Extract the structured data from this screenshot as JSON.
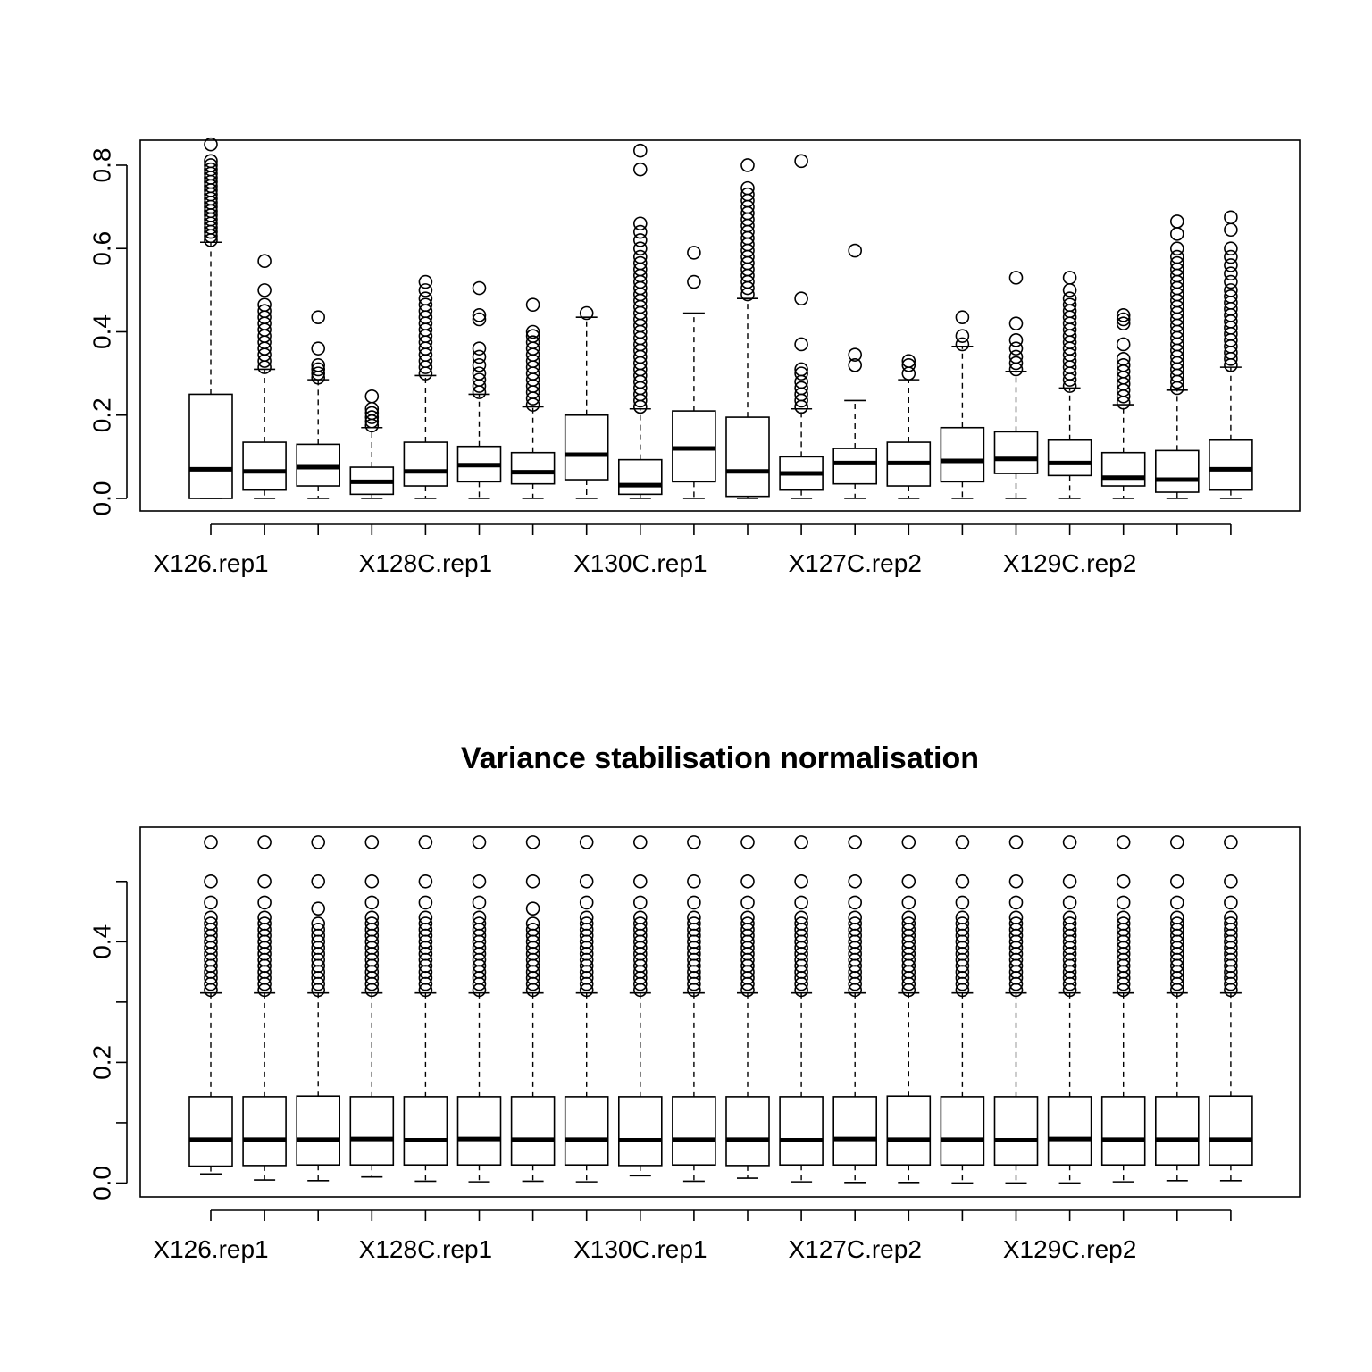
{
  "chart_data": [
    {
      "type": "box",
      "title": "",
      "xlabel": "",
      "ylabel": "",
      "ylim": [
        -0.03,
        0.86
      ],
      "yticks": [
        0.0,
        0.2,
        0.4,
        0.6,
        0.8
      ],
      "ytick_labels": [
        "0.0",
        "0.2",
        "0.4",
        "0.6",
        "0.8"
      ],
      "tick_labels": [
        "X126.rep1",
        "X128C.rep1",
        "X130C.rep1",
        "X127C.rep2",
        "X129C.rep2"
      ],
      "grid": false,
      "boxes": [
        {
          "whisker_low": 0.0,
          "q1": 0.0,
          "median": 0.07,
          "q3": 0.25,
          "whisker_high": 0.615,
          "outliers": [
            0.62,
            0.63,
            0.64,
            0.65,
            0.66,
            0.67,
            0.68,
            0.69,
            0.7,
            0.71,
            0.72,
            0.73,
            0.74,
            0.75,
            0.76,
            0.77,
            0.78,
            0.79,
            0.8,
            0.81,
            0.85
          ]
        },
        {
          "whisker_low": 0.0,
          "q1": 0.02,
          "median": 0.065,
          "q3": 0.135,
          "whisker_high": 0.31,
          "outliers": [
            0.315,
            0.33,
            0.345,
            0.36,
            0.375,
            0.39,
            0.405,
            0.42,
            0.435,
            0.45,
            0.465,
            0.5,
            0.57
          ]
        },
        {
          "whisker_low": 0.0,
          "q1": 0.03,
          "median": 0.075,
          "q3": 0.13,
          "whisker_high": 0.285,
          "outliers": [
            0.29,
            0.3,
            0.31,
            0.32,
            0.36,
            0.435
          ]
        },
        {
          "whisker_low": 0.0,
          "q1": 0.01,
          "median": 0.04,
          "q3": 0.075,
          "whisker_high": 0.17,
          "outliers": [
            0.175,
            0.185,
            0.195,
            0.205,
            0.215,
            0.245
          ]
        },
        {
          "whisker_low": 0.0,
          "q1": 0.03,
          "median": 0.065,
          "q3": 0.135,
          "whisker_high": 0.295,
          "outliers": [
            0.3,
            0.315,
            0.33,
            0.345,
            0.36,
            0.375,
            0.39,
            0.405,
            0.42,
            0.435,
            0.45,
            0.465,
            0.48,
            0.5,
            0.52
          ]
        },
        {
          "whisker_low": 0.0,
          "q1": 0.04,
          "median": 0.08,
          "q3": 0.125,
          "whisker_high": 0.25,
          "outliers": [
            0.255,
            0.27,
            0.285,
            0.3,
            0.32,
            0.34,
            0.36,
            0.43,
            0.44,
            0.505
          ]
        },
        {
          "whisker_low": 0.0,
          "q1": 0.035,
          "median": 0.063,
          "q3": 0.11,
          "whisker_high": 0.22,
          "outliers": [
            0.225,
            0.24,
            0.255,
            0.27,
            0.285,
            0.3,
            0.315,
            0.33,
            0.345,
            0.36,
            0.375,
            0.39,
            0.4,
            0.465
          ]
        },
        {
          "whisker_low": 0.0,
          "q1": 0.045,
          "median": 0.105,
          "q3": 0.2,
          "whisker_high": 0.435,
          "outliers": [
            0.445
          ]
        },
        {
          "whisker_low": 0.0,
          "q1": 0.01,
          "median": 0.032,
          "q3": 0.093,
          "whisker_high": 0.215,
          "outliers": [
            0.22,
            0.235,
            0.25,
            0.265,
            0.28,
            0.295,
            0.31,
            0.325,
            0.34,
            0.355,
            0.37,
            0.385,
            0.4,
            0.415,
            0.43,
            0.445,
            0.46,
            0.475,
            0.49,
            0.505,
            0.52,
            0.535,
            0.55,
            0.565,
            0.58,
            0.6,
            0.62,
            0.64,
            0.66,
            0.79,
            0.835
          ]
        },
        {
          "whisker_low": 0.0,
          "q1": 0.04,
          "median": 0.12,
          "q3": 0.21,
          "whisker_high": 0.445,
          "outliers": [
            0.52,
            0.59
          ]
        },
        {
          "whisker_low": 0.0,
          "q1": 0.005,
          "median": 0.065,
          "q3": 0.195,
          "whisker_high": 0.48,
          "outliers": [
            0.49,
            0.505,
            0.52,
            0.535,
            0.55,
            0.565,
            0.58,
            0.595,
            0.61,
            0.625,
            0.64,
            0.655,
            0.67,
            0.685,
            0.7,
            0.715,
            0.73,
            0.745,
            0.8
          ]
        },
        {
          "whisker_low": 0.0,
          "q1": 0.02,
          "median": 0.06,
          "q3": 0.1,
          "whisker_high": 0.215,
          "outliers": [
            0.22,
            0.235,
            0.25,
            0.265,
            0.28,
            0.3,
            0.31,
            0.37,
            0.48,
            0.81
          ]
        },
        {
          "whisker_low": 0.0,
          "q1": 0.035,
          "median": 0.085,
          "q3": 0.12,
          "whisker_high": 0.235,
          "outliers": [
            0.32,
            0.345,
            0.595
          ]
        },
        {
          "whisker_low": 0.0,
          "q1": 0.03,
          "median": 0.085,
          "q3": 0.135,
          "whisker_high": 0.285,
          "outliers": [
            0.3,
            0.32,
            0.33
          ]
        },
        {
          "whisker_low": 0.0,
          "q1": 0.04,
          "median": 0.09,
          "q3": 0.17,
          "whisker_high": 0.365,
          "outliers": [
            0.37,
            0.39,
            0.435
          ]
        },
        {
          "whisker_low": 0.0,
          "q1": 0.06,
          "median": 0.095,
          "q3": 0.16,
          "whisker_high": 0.305,
          "outliers": [
            0.31,
            0.325,
            0.34,
            0.36,
            0.38,
            0.42,
            0.53
          ]
        },
        {
          "whisker_low": 0.0,
          "q1": 0.055,
          "median": 0.085,
          "q3": 0.14,
          "whisker_high": 0.265,
          "outliers": [
            0.27,
            0.285,
            0.3,
            0.315,
            0.33,
            0.345,
            0.36,
            0.375,
            0.39,
            0.405,
            0.42,
            0.435,
            0.45,
            0.465,
            0.48,
            0.5,
            0.53
          ]
        },
        {
          "whisker_low": 0.0,
          "q1": 0.03,
          "median": 0.05,
          "q3": 0.11,
          "whisker_high": 0.225,
          "outliers": [
            0.23,
            0.245,
            0.26,
            0.275,
            0.29,
            0.305,
            0.32,
            0.335,
            0.37,
            0.42,
            0.43,
            0.44
          ]
        },
        {
          "whisker_low": 0.0,
          "q1": 0.015,
          "median": 0.045,
          "q3": 0.115,
          "whisker_high": 0.26,
          "outliers": [
            0.265,
            0.28,
            0.295,
            0.31,
            0.325,
            0.34,
            0.355,
            0.37,
            0.385,
            0.4,
            0.415,
            0.43,
            0.445,
            0.46,
            0.475,
            0.49,
            0.505,
            0.52,
            0.535,
            0.55,
            0.565,
            0.58,
            0.6,
            0.635,
            0.665
          ]
        },
        {
          "whisker_low": 0.0,
          "q1": 0.02,
          "median": 0.07,
          "q3": 0.14,
          "whisker_high": 0.315,
          "outliers": [
            0.32,
            0.335,
            0.35,
            0.365,
            0.38,
            0.395,
            0.41,
            0.425,
            0.44,
            0.455,
            0.47,
            0.485,
            0.5,
            0.52,
            0.54,
            0.56,
            0.58,
            0.6,
            0.645,
            0.675
          ]
        }
      ]
    },
    {
      "type": "box",
      "title": "Variance stabilisation normalisation",
      "xlabel": "",
      "ylabel": "",
      "ylim": [
        -0.023,
        0.59
      ],
      "yticks": [
        0.0,
        0.1,
        0.2,
        0.3,
        0.4,
        0.5
      ],
      "ytick_labels": [
        "0.0",
        "",
        "0.2",
        "",
        "0.4",
        ""
      ],
      "tick_labels": [
        "X126.rep1",
        "X128C.rep1",
        "X130C.rep1",
        "X127C.rep2",
        "X129C.rep2"
      ],
      "grid": false,
      "boxes": [
        {
          "whisker_low": 0.015,
          "q1": 0.028,
          "median": 0.072,
          "q3": 0.143,
          "whisker_high": 0.315,
          "outliers": [
            0.32,
            0.33,
            0.34,
            0.35,
            0.36,
            0.37,
            0.38,
            0.39,
            0.4,
            0.41,
            0.42,
            0.43,
            0.44,
            0.465,
            0.5,
            0.565
          ]
        },
        {
          "whisker_low": 0.005,
          "q1": 0.029,
          "median": 0.072,
          "q3": 0.143,
          "whisker_high": 0.315,
          "outliers": [
            0.32,
            0.33,
            0.34,
            0.35,
            0.36,
            0.37,
            0.38,
            0.39,
            0.4,
            0.41,
            0.42,
            0.43,
            0.44,
            0.465,
            0.5,
            0.565
          ]
        },
        {
          "whisker_low": 0.004,
          "q1": 0.03,
          "median": 0.072,
          "q3": 0.144,
          "whisker_high": 0.315,
          "outliers": [
            0.32,
            0.33,
            0.34,
            0.35,
            0.36,
            0.37,
            0.38,
            0.39,
            0.4,
            0.41,
            0.42,
            0.43,
            0.455,
            0.5,
            0.565
          ]
        },
        {
          "whisker_low": 0.01,
          "q1": 0.03,
          "median": 0.073,
          "q3": 0.143,
          "whisker_high": 0.315,
          "outliers": [
            0.32,
            0.33,
            0.34,
            0.35,
            0.36,
            0.37,
            0.38,
            0.39,
            0.4,
            0.41,
            0.42,
            0.43,
            0.44,
            0.465,
            0.5,
            0.565
          ]
        },
        {
          "whisker_low": 0.003,
          "q1": 0.03,
          "median": 0.071,
          "q3": 0.143,
          "whisker_high": 0.315,
          "outliers": [
            0.32,
            0.33,
            0.34,
            0.35,
            0.36,
            0.37,
            0.38,
            0.39,
            0.4,
            0.41,
            0.42,
            0.43,
            0.44,
            0.465,
            0.5,
            0.565
          ]
        },
        {
          "whisker_low": 0.002,
          "q1": 0.03,
          "median": 0.073,
          "q3": 0.143,
          "whisker_high": 0.315,
          "outliers": [
            0.32,
            0.33,
            0.34,
            0.35,
            0.36,
            0.37,
            0.38,
            0.39,
            0.4,
            0.41,
            0.42,
            0.43,
            0.44,
            0.465,
            0.5,
            0.565
          ]
        },
        {
          "whisker_low": 0.003,
          "q1": 0.03,
          "median": 0.072,
          "q3": 0.143,
          "whisker_high": 0.315,
          "outliers": [
            0.32,
            0.33,
            0.34,
            0.35,
            0.36,
            0.37,
            0.38,
            0.39,
            0.4,
            0.41,
            0.42,
            0.43,
            0.455,
            0.5,
            0.565
          ]
        },
        {
          "whisker_low": 0.002,
          "q1": 0.03,
          "median": 0.072,
          "q3": 0.143,
          "whisker_high": 0.315,
          "outliers": [
            0.32,
            0.33,
            0.34,
            0.35,
            0.36,
            0.37,
            0.38,
            0.39,
            0.4,
            0.41,
            0.42,
            0.43,
            0.44,
            0.465,
            0.5,
            0.565
          ]
        },
        {
          "whisker_low": 0.012,
          "q1": 0.029,
          "median": 0.071,
          "q3": 0.143,
          "whisker_high": 0.315,
          "outliers": [
            0.32,
            0.33,
            0.34,
            0.35,
            0.36,
            0.37,
            0.38,
            0.39,
            0.4,
            0.41,
            0.42,
            0.43,
            0.44,
            0.465,
            0.5,
            0.565
          ]
        },
        {
          "whisker_low": 0.003,
          "q1": 0.03,
          "median": 0.072,
          "q3": 0.143,
          "whisker_high": 0.315,
          "outliers": [
            0.32,
            0.33,
            0.34,
            0.35,
            0.36,
            0.37,
            0.38,
            0.39,
            0.4,
            0.41,
            0.42,
            0.43,
            0.44,
            0.465,
            0.5,
            0.565
          ]
        },
        {
          "whisker_low": 0.008,
          "q1": 0.029,
          "median": 0.072,
          "q3": 0.143,
          "whisker_high": 0.315,
          "outliers": [
            0.32,
            0.33,
            0.34,
            0.35,
            0.36,
            0.37,
            0.38,
            0.39,
            0.4,
            0.41,
            0.42,
            0.43,
            0.44,
            0.465,
            0.5,
            0.565
          ]
        },
        {
          "whisker_low": 0.002,
          "q1": 0.03,
          "median": 0.071,
          "q3": 0.143,
          "whisker_high": 0.315,
          "outliers": [
            0.32,
            0.33,
            0.34,
            0.35,
            0.36,
            0.37,
            0.38,
            0.39,
            0.4,
            0.41,
            0.42,
            0.43,
            0.44,
            0.465,
            0.5,
            0.565
          ]
        },
        {
          "whisker_low": 0.001,
          "q1": 0.03,
          "median": 0.073,
          "q3": 0.143,
          "whisker_high": 0.315,
          "outliers": [
            0.32,
            0.33,
            0.34,
            0.35,
            0.36,
            0.37,
            0.38,
            0.39,
            0.4,
            0.41,
            0.42,
            0.43,
            0.44,
            0.465,
            0.5,
            0.565
          ]
        },
        {
          "whisker_low": 0.001,
          "q1": 0.03,
          "median": 0.072,
          "q3": 0.144,
          "whisker_high": 0.315,
          "outliers": [
            0.32,
            0.33,
            0.34,
            0.35,
            0.36,
            0.37,
            0.38,
            0.39,
            0.4,
            0.41,
            0.42,
            0.43,
            0.44,
            0.465,
            0.5,
            0.565
          ]
        },
        {
          "whisker_low": 0.0,
          "q1": 0.03,
          "median": 0.072,
          "q3": 0.143,
          "whisker_high": 0.315,
          "outliers": [
            0.32,
            0.33,
            0.34,
            0.35,
            0.36,
            0.37,
            0.38,
            0.39,
            0.4,
            0.41,
            0.42,
            0.43,
            0.44,
            0.465,
            0.5,
            0.565
          ]
        },
        {
          "whisker_low": 0.0,
          "q1": 0.03,
          "median": 0.071,
          "q3": 0.143,
          "whisker_high": 0.315,
          "outliers": [
            0.32,
            0.33,
            0.34,
            0.35,
            0.36,
            0.37,
            0.38,
            0.39,
            0.4,
            0.41,
            0.42,
            0.43,
            0.44,
            0.465,
            0.5,
            0.565
          ]
        },
        {
          "whisker_low": 0.0,
          "q1": 0.03,
          "median": 0.073,
          "q3": 0.143,
          "whisker_high": 0.315,
          "outliers": [
            0.32,
            0.33,
            0.34,
            0.35,
            0.36,
            0.37,
            0.38,
            0.39,
            0.4,
            0.41,
            0.42,
            0.43,
            0.44,
            0.465,
            0.5,
            0.565
          ]
        },
        {
          "whisker_low": 0.002,
          "q1": 0.03,
          "median": 0.072,
          "q3": 0.143,
          "whisker_high": 0.315,
          "outliers": [
            0.32,
            0.33,
            0.34,
            0.35,
            0.36,
            0.37,
            0.38,
            0.39,
            0.4,
            0.41,
            0.42,
            0.43,
            0.44,
            0.465,
            0.5,
            0.565
          ]
        },
        {
          "whisker_low": 0.004,
          "q1": 0.03,
          "median": 0.072,
          "q3": 0.143,
          "whisker_high": 0.315,
          "outliers": [
            0.32,
            0.33,
            0.34,
            0.35,
            0.36,
            0.37,
            0.38,
            0.39,
            0.4,
            0.41,
            0.42,
            0.43,
            0.44,
            0.465,
            0.5,
            0.565
          ]
        },
        {
          "whisker_low": 0.004,
          "q1": 0.03,
          "median": 0.072,
          "q3": 0.144,
          "whisker_high": 0.315,
          "outliers": [
            0.32,
            0.33,
            0.34,
            0.35,
            0.36,
            0.37,
            0.38,
            0.39,
            0.4,
            0.41,
            0.42,
            0.43,
            0.44,
            0.465,
            0.5,
            0.565
          ]
        }
      ]
    }
  ]
}
